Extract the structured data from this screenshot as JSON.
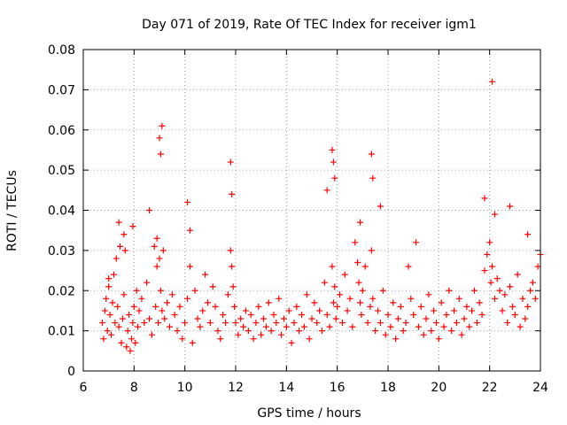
{
  "chart_data": {
    "type": "scatter",
    "title": "Day 071 of 2019, Rate Of TEC Index for receiver igm1",
    "xlabel": "GPS time / hours",
    "ylabel": "ROTI / TECUs",
    "xlim": [
      6,
      24
    ],
    "ylim": [
      0,
      0.08
    ],
    "xticks": [
      6,
      8,
      10,
      12,
      14,
      16,
      18,
      20,
      22,
      24
    ],
    "yticks": [
      0,
      0.01,
      0.02,
      0.03,
      0.04,
      0.05,
      0.06,
      0.07,
      0.08
    ],
    "ytick_labels": [
      "0",
      "0.01",
      "0.02",
      "0.03",
      "0.04",
      "0.05",
      "0.06",
      "0.07",
      "0.08"
    ],
    "grid": true,
    "marker": "+",
    "color": "#ff0000",
    "series": [
      {
        "name": "ROTI",
        "x": [
          6.75,
          6.8,
          6.85,
          6.9,
          6.95,
          7.0,
          7.05,
          7.1,
          7.15,
          7.2,
          7.25,
          7.3,
          7.35,
          7.4,
          7.45,
          7.5,
          7.55,
          7.6,
          7.65,
          7.7,
          7.75,
          7.8,
          7.85,
          7.9,
          7.95,
          8.0,
          8.05,
          8.1,
          8.15,
          8.2,
          8.3,
          8.4,
          8.5,
          8.6,
          8.7,
          8.8,
          8.85,
          8.9,
          8.95,
          9.0,
          9.05,
          9.1,
          9.15,
          9.2,
          9.3,
          9.4,
          9.5,
          9.6,
          9.7,
          9.8,
          9.9,
          10.0,
          10.1,
          10.2,
          10.3,
          10.4,
          10.5,
          10.6,
          10.7,
          10.8,
          10.9,
          11.0,
          11.1,
          11.2,
          11.3,
          11.4,
          11.5,
          11.6,
          11.7,
          11.8,
          11.85,
          11.9,
          11.95,
          12.0,
          12.1,
          12.2,
          12.3,
          12.4,
          12.5,
          12.6,
          12.7,
          12.8,
          12.9,
          13.0,
          13.1,
          13.2,
          13.3,
          13.4,
          13.5,
          13.6,
          13.7,
          13.8,
          13.9,
          14.0,
          14.1,
          14.2,
          14.3,
          14.4,
          14.5,
          14.6,
          14.7,
          14.8,
          14.9,
          15.0,
          15.1,
          15.2,
          15.3,
          15.4,
          15.5,
          15.6,
          15.7,
          15.8,
          15.85,
          15.9,
          15.95,
          16.0,
          16.1,
          16.2,
          16.3,
          16.4,
          16.5,
          16.6,
          16.7,
          16.8,
          16.85,
          16.9,
          16.95,
          17.0,
          17.1,
          17.2,
          17.3,
          17.35,
          17.4,
          17.5,
          17.6,
          17.7,
          17.8,
          17.9,
          18.0,
          18.1,
          18.2,
          18.3,
          18.4,
          18.5,
          18.6,
          18.7,
          18.8,
          18.9,
          19.0,
          19.1,
          19.2,
          19.3,
          19.4,
          19.5,
          19.6,
          19.7,
          19.8,
          19.9,
          20.0,
          20.1,
          20.2,
          20.3,
          20.4,
          20.5,
          20.6,
          20.7,
          20.8,
          20.9,
          21.0,
          21.1,
          21.2,
          21.3,
          21.4,
          21.5,
          21.6,
          21.7,
          21.8,
          21.9,
          22.0,
          22.05,
          22.1,
          22.2,
          22.3,
          22.4,
          22.5,
          22.6,
          22.7,
          22.8,
          22.9,
          23.0,
          23.1,
          23.2,
          23.3,
          23.4,
          23.5,
          23.6,
          23.7,
          23.8,
          23.9,
          24.0,
          7.0,
          7.4,
          7.6,
          7.95,
          8.6,
          8.9,
          9.0,
          9.05,
          9.1,
          10.1,
          10.2,
          11.8,
          11.85,
          15.6,
          15.8,
          15.85,
          15.9,
          16.9,
          17.35,
          17.4,
          17.7,
          21.8,
          22.1,
          22.2,
          22.8,
          23.5
        ],
        "y": [
          0.012,
          0.008,
          0.015,
          0.018,
          0.01,
          0.021,
          0.014,
          0.009,
          0.017,
          0.024,
          0.012,
          0.028,
          0.016,
          0.011,
          0.031,
          0.007,
          0.013,
          0.019,
          0.03,
          0.006,
          0.01,
          0.014,
          0.005,
          0.008,
          0.012,
          0.016,
          0.007,
          0.02,
          0.011,
          0.015,
          0.018,
          0.012,
          0.022,
          0.013,
          0.009,
          0.031,
          0.016,
          0.026,
          0.012,
          0.028,
          0.02,
          0.015,
          0.03,
          0.013,
          0.017,
          0.011,
          0.019,
          0.014,
          0.01,
          0.016,
          0.008,
          0.012,
          0.018,
          0.026,
          0.007,
          0.02,
          0.013,
          0.011,
          0.015,
          0.024,
          0.017,
          0.012,
          0.021,
          0.016,
          0.01,
          0.008,
          0.014,
          0.012,
          0.019,
          0.03,
          0.026,
          0.021,
          0.016,
          0.012,
          0.009,
          0.013,
          0.011,
          0.015,
          0.01,
          0.014,
          0.008,
          0.012,
          0.016,
          0.009,
          0.013,
          0.011,
          0.017,
          0.01,
          0.014,
          0.012,
          0.018,
          0.009,
          0.013,
          0.011,
          0.015,
          0.007,
          0.012,
          0.016,
          0.01,
          0.014,
          0.011,
          0.019,
          0.008,
          0.013,
          0.017,
          0.012,
          0.015,
          0.01,
          0.022,
          0.014,
          0.011,
          0.026,
          0.017,
          0.021,
          0.013,
          0.016,
          0.019,
          0.012,
          0.024,
          0.015,
          0.018,
          0.011,
          0.032,
          0.027,
          0.022,
          0.017,
          0.014,
          0.02,
          0.026,
          0.012,
          0.016,
          0.03,
          0.018,
          0.01,
          0.015,
          0.012,
          0.02,
          0.009,
          0.014,
          0.011,
          0.017,
          0.008,
          0.013,
          0.016,
          0.01,
          0.012,
          0.026,
          0.018,
          0.014,
          0.032,
          0.011,
          0.016,
          0.009,
          0.013,
          0.019,
          0.01,
          0.015,
          0.012,
          0.008,
          0.017,
          0.011,
          0.014,
          0.02,
          0.01,
          0.015,
          0.012,
          0.018,
          0.009,
          0.013,
          0.016,
          0.011,
          0.015,
          0.02,
          0.012,
          0.017,
          0.014,
          0.025,
          0.029,
          0.032,
          0.022,
          0.026,
          0.018,
          0.023,
          0.02,
          0.015,
          0.019,
          0.012,
          0.021,
          0.016,
          0.014,
          0.024,
          0.011,
          0.018,
          0.013,
          0.016,
          0.02,
          0.022,
          0.018,
          0.026,
          0.029,
          0.023,
          0.037,
          0.034,
          0.036,
          0.04,
          0.033,
          0.058,
          0.054,
          0.061,
          0.042,
          0.035,
          0.052,
          0.044,
          0.045,
          0.055,
          0.052,
          0.048,
          0.037,
          0.054,
          0.048,
          0.041,
          0.043,
          0.072,
          0.039,
          0.041,
          0.034
        ]
      }
    ]
  }
}
